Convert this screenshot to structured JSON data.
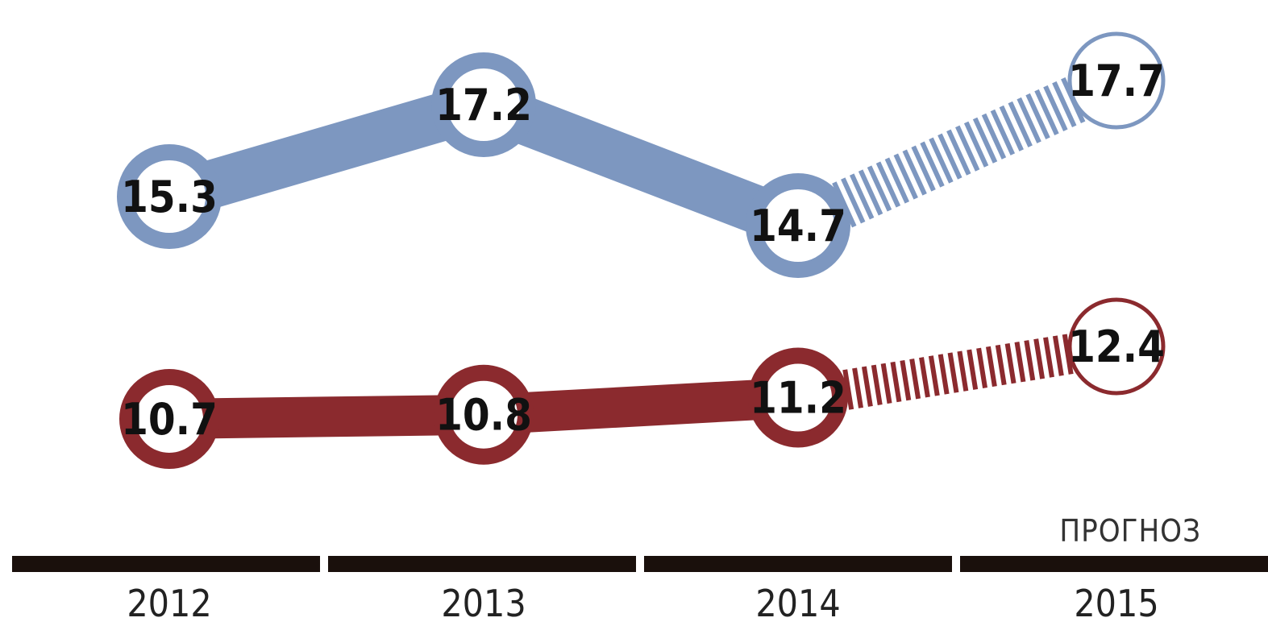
{
  "chart_data": {
    "type": "line",
    "categories": [
      "2012",
      "2013",
      "2014",
      "2015"
    ],
    "forecast_label": "ПРОГНОЗ",
    "forecast_from_index": 2,
    "series": [
      {
        "values": [
          15.3,
          17.2,
          14.7,
          17.7
        ],
        "labels": [
          "15.3",
          "17.2",
          "14.7",
          "17.7"
        ],
        "color": "#7d97c0"
      },
      {
        "values": [
          10.7,
          10.8,
          11.2,
          12.4
        ],
        "labels": [
          "10.7",
          "10.8",
          "11.2",
          "12.4"
        ],
        "color": "#8b2a2e"
      }
    ],
    "axis_color": "#1a100c",
    "grid": false
  }
}
